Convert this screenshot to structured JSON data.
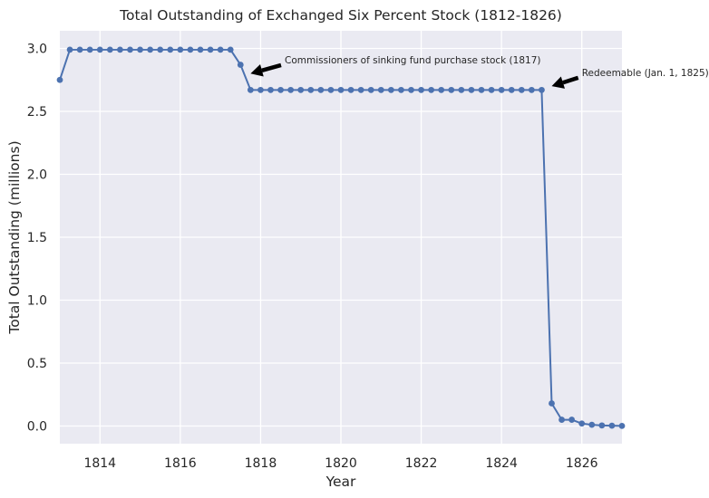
{
  "chart_data": {
    "type": "line",
    "title": "Total Outstanding of Exchanged Six Percent Stock (1812-1826)",
    "xlabel": "Year",
    "ylabel": "Total Outstanding (millions)",
    "xlim": [
      1813,
      1827
    ],
    "ylim": [
      -0.14,
      3.14
    ],
    "xticks": [
      1814,
      1816,
      1818,
      1820,
      1822,
      1824,
      1826
    ],
    "yticks": [
      0.0,
      0.5,
      1.0,
      1.5,
      2.0,
      2.5,
      3.0
    ],
    "grid": true,
    "line_color": "#4c72b0",
    "background_color": "#eaeaf2",
    "series": [
      {
        "x": [
          1813.0,
          1813.25,
          1813.5,
          1813.75,
          1814.0,
          1814.25,
          1814.5,
          1814.75,
          1815.0,
          1815.25,
          1815.5,
          1815.75,
          1816.0,
          1816.25,
          1816.5,
          1816.75,
          1817.0,
          1817.25,
          1817.5,
          1817.75,
          1818.0,
          1818.25,
          1818.5,
          1818.75,
          1819.0,
          1819.25,
          1819.5,
          1819.75,
          1820.0,
          1820.25,
          1820.5,
          1820.75,
          1821.0,
          1821.25,
          1821.5,
          1821.75,
          1822.0,
          1822.25,
          1822.5,
          1822.75,
          1823.0,
          1823.25,
          1823.5,
          1823.75,
          1824.0,
          1824.25,
          1824.5,
          1824.75,
          1825.0,
          1825.25,
          1825.5,
          1825.75,
          1826.0,
          1826.25,
          1826.5,
          1826.75,
          1827.0
        ],
        "y": [
          2.75,
          2.99,
          2.99,
          2.99,
          2.99,
          2.99,
          2.99,
          2.99,
          2.99,
          2.99,
          2.99,
          2.99,
          2.99,
          2.99,
          2.99,
          2.99,
          2.99,
          2.99,
          2.87,
          2.67,
          2.67,
          2.67,
          2.67,
          2.67,
          2.67,
          2.67,
          2.67,
          2.67,
          2.67,
          2.67,
          2.67,
          2.67,
          2.67,
          2.67,
          2.67,
          2.67,
          2.67,
          2.67,
          2.67,
          2.67,
          2.67,
          2.67,
          2.67,
          2.67,
          2.67,
          2.67,
          2.67,
          2.67,
          2.67,
          0.18,
          0.05,
          0.05,
          0.02,
          0.01,
          0.005,
          0.003,
          0.001
        ]
      }
    ],
    "annotations": [
      {
        "text": "Commissioners of sinking fund purchase stock (1817)",
        "point": [
          1817.75,
          2.8
        ],
        "text_at": [
          1818.6,
          2.91
        ]
      },
      {
        "text": "Redeemable (Jan. 1, 1825)",
        "point": [
          1825.25,
          2.7
        ],
        "text_at": [
          1826.0,
          2.81
        ]
      }
    ]
  }
}
